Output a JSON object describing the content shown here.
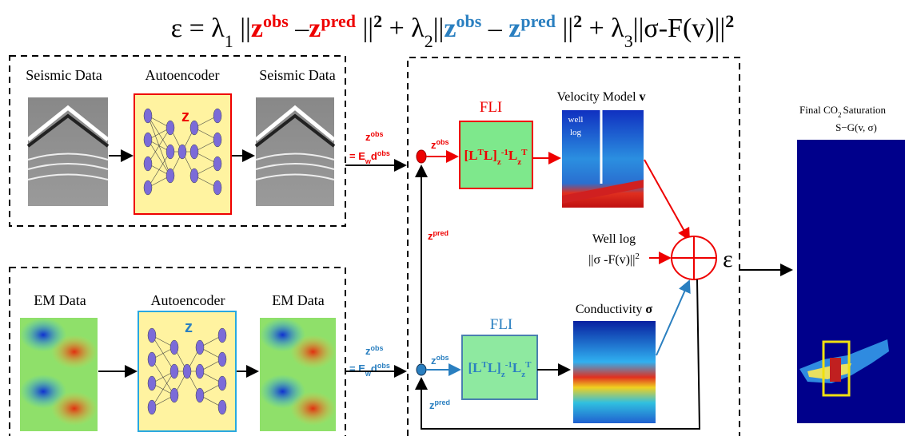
{
  "equation": {
    "parts": [
      "ε = λ",
      "1",
      " ||",
      "z",
      "obs",
      " –",
      "z",
      "pred",
      " ||",
      "2",
      "  + λ",
      "2",
      "||",
      "z",
      "obs",
      " – ",
      "z",
      "pred",
      " ||",
      "2",
      " + λ",
      "3",
      "||σ-F(v)||",
      "2"
    ]
  },
  "seismic_panel": {
    "input_label": "Seismic Data",
    "autoencoder_label": "Autoencoder",
    "latent": "z",
    "output_label": "Seismic Data"
  },
  "em_panel": {
    "input_label": "EM Data",
    "autoencoder_label": "Autoencoder",
    "latent": "z",
    "output_label": "EM Data"
  },
  "links": {
    "seismic": {
      "parts": [
        "z",
        "obs",
        "= E",
        "w",
        "d",
        "obs"
      ]
    },
    "em": {
      "parts": [
        "z",
        "obs",
        "= E",
        "w",
        "d",
        "obs"
      ]
    }
  },
  "inversion": {
    "velocity": {
      "input_parts": [
        "z",
        "obs"
      ],
      "fli_label": "FLI",
      "operator_parts": [
        "[L",
        "T",
        "L]",
        "z",
        "-1",
        "L",
        "z",
        "T"
      ],
      "model_title": "Velocity Model ",
      "model_symbol": "v",
      "well_log_lines": [
        "well",
        "log"
      ]
    },
    "feedback_top": {
      "parts": [
        "z",
        "pred"
      ]
    },
    "well_log": {
      "label": "Well log",
      "term_parts": [
        "||σ -F(v)||",
        "2"
      ]
    },
    "misfit_symbol": "ε",
    "conductivity": {
      "input_parts": [
        "z",
        "obs"
      ],
      "fli_label": "FLI",
      "operator_parts": [
        "[L",
        "T",
        "L]",
        "z",
        "-1",
        "L",
        "z",
        "T"
      ],
      "model_title": "Conductivity ",
      "model_symbol": "σ"
    },
    "feedback_bottom": {
      "parts": [
        "z",
        "pred"
      ]
    }
  },
  "result": {
    "title_parts": [
      "Final CO",
      "2",
      "Saturation"
    ],
    "formula": "S−G(v, σ)"
  }
}
